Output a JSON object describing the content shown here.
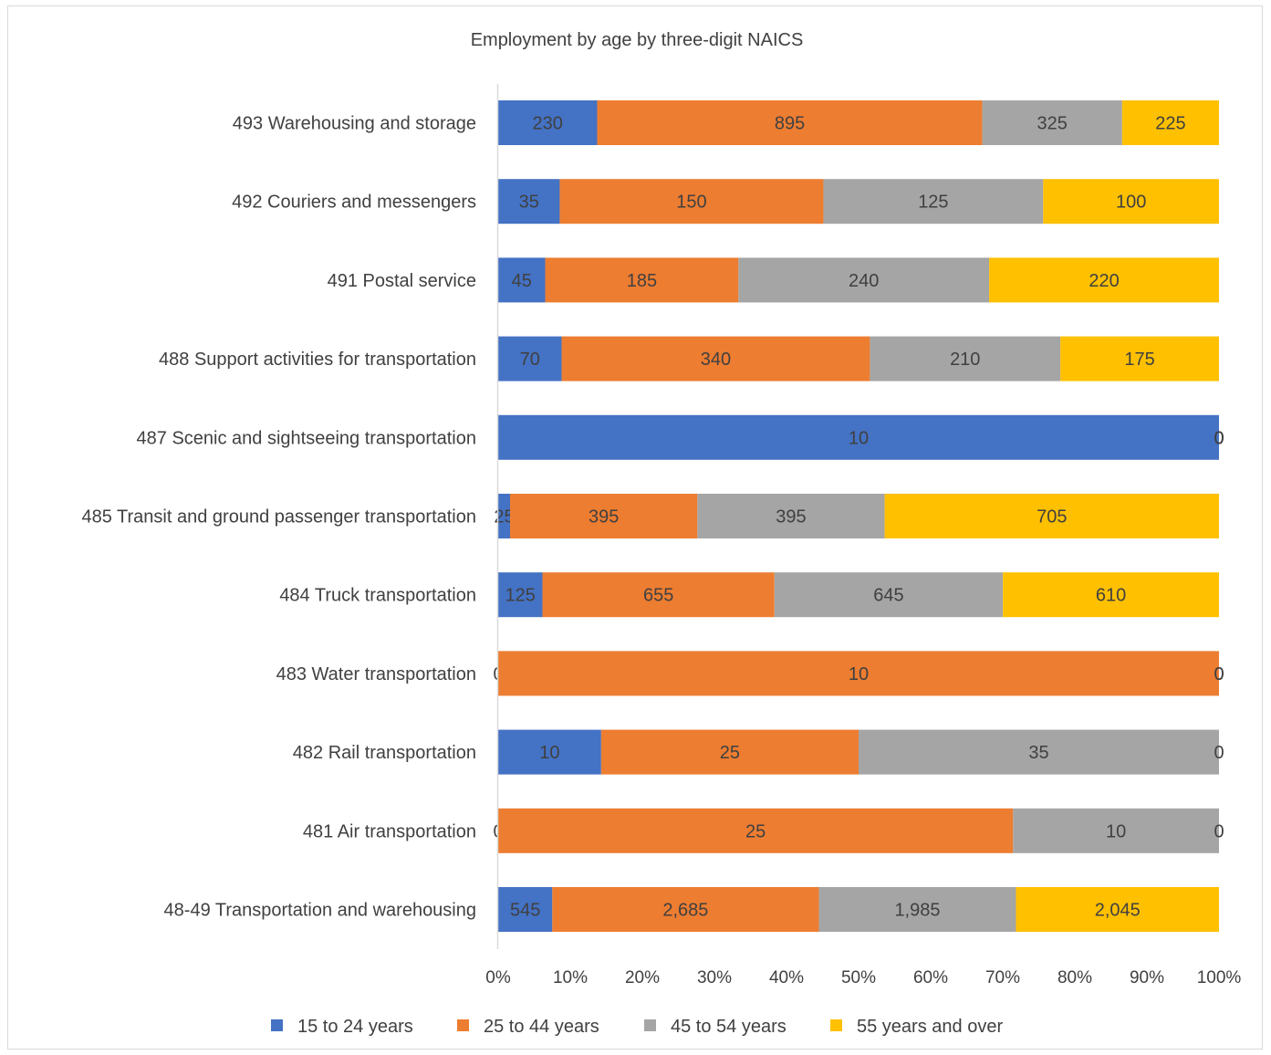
{
  "chart_data": {
    "type": "bar",
    "orientation": "horizontal",
    "stacking": "percent",
    "title": "Employment by age by three-digit NAICS",
    "categories": [
      "493 Warehousing and storage",
      "492 Couriers and messengers",
      "491 Postal service",
      "488 Support activities for transportation",
      "487 Scenic and sightseeing transportation",
      "485 Transit and ground passenger transportation",
      "484 Truck transportation",
      "483 Water transportation",
      "482 Rail transportation",
      "481 Air transportation",
      "48-49 Transportation and warehousing"
    ],
    "series": [
      {
        "name": "15 to 24 years",
        "color": "#4472c4",
        "values": [
          230,
          35,
          45,
          70,
          10,
          25,
          125,
          0,
          10,
          0,
          545
        ],
        "labels": [
          "230",
          "35",
          "45",
          "70",
          "10",
          "25",
          "125",
          "0",
          "10",
          "0",
          "545"
        ]
      },
      {
        "name": "25 to 44 years",
        "color": "#ed7d31",
        "values": [
          895,
          150,
          185,
          340,
          0,
          395,
          655,
          10,
          25,
          25,
          2685
        ],
        "labels": [
          "895",
          "150",
          "185",
          "340",
          "0",
          "395",
          "655",
          "10",
          "25",
          "25",
          "2,685"
        ]
      },
      {
        "name": "45 to 54 years",
        "color": "#a5a5a5",
        "values": [
          325,
          125,
          240,
          210,
          0,
          395,
          645,
          0,
          35,
          10,
          1985
        ],
        "labels": [
          "325",
          "125",
          "240",
          "210",
          "0",
          "395",
          "645",
          "0",
          "35",
          "10",
          "1,985"
        ]
      },
      {
        "name": "55 years and over",
        "color": "#ffc000",
        "values": [
          225,
          100,
          220,
          175,
          0,
          705,
          610,
          0,
          0,
          0,
          2045
        ],
        "labels": [
          "225",
          "100",
          "220",
          "175",
          "0",
          "705",
          "610",
          "0",
          "0",
          "0",
          "2,045"
        ]
      }
    ],
    "xticks": [
      "0%",
      "10%",
      "20%",
      "30%",
      "40%",
      "50%",
      "60%",
      "70%",
      "80%",
      "90%",
      "100%"
    ],
    "xlim": [
      0,
      100
    ],
    "grid": false,
    "legend": "bottom"
  }
}
